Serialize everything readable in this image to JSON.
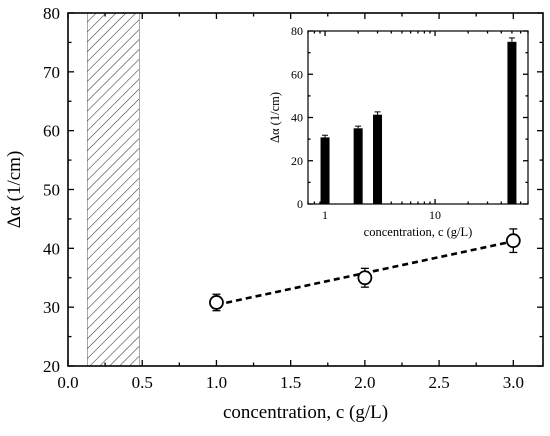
{
  "chart_data": [
    {
      "type": "scatter",
      "xlabel": "concentration, c (g/L)",
      "ylabel": "Δα (1/cm)",
      "xlim": [
        0.0,
        3.2
      ],
      "ylim": [
        20,
        80
      ],
      "xticks": [
        "0.0",
        "0.5",
        "1.0",
        "1.5",
        "2.0",
        "2.5",
        "3.0"
      ],
      "yticks": [
        "20",
        "30",
        "40",
        "50",
        "60",
        "70",
        "80"
      ],
      "points": [
        {
          "x": 1.0,
          "y": 30.8,
          "err": 1.4
        },
        {
          "x": 2.0,
          "y": 35.0,
          "err": 1.6
        },
        {
          "x": 3.0,
          "y": 41.3,
          "err": 2.0
        }
      ],
      "fit_line": {
        "style": "dashed",
        "x": [
          1.0,
          3.0
        ],
        "y": [
          30.4,
          41.2
        ]
      },
      "shaded_region": {
        "x": [
          0.13,
          0.48
        ],
        "pattern": "hatched"
      },
      "marker": "open-circle",
      "grid": false
    },
    {
      "type": "bar",
      "inset": true,
      "xscale": "log",
      "xlabel": "concentration, c (g/L)",
      "ylabel": "Δα (1/cm)",
      "xlim": [
        0.7,
        70
      ],
      "ylim": [
        0,
        80
      ],
      "xticks": [
        "1",
        "10"
      ],
      "yticks": [
        "0",
        "20",
        "40",
        "60",
        "80"
      ],
      "bars": [
        {
          "x": 1,
          "y": 30.8,
          "err": 1.0
        },
        {
          "x": 2,
          "y": 35.0,
          "err": 1.0
        },
        {
          "x": 3,
          "y": 41.3,
          "err": 1.3
        },
        {
          "x": 50,
          "y": 75.0,
          "err": 1.8
        }
      ],
      "grid": false
    }
  ]
}
